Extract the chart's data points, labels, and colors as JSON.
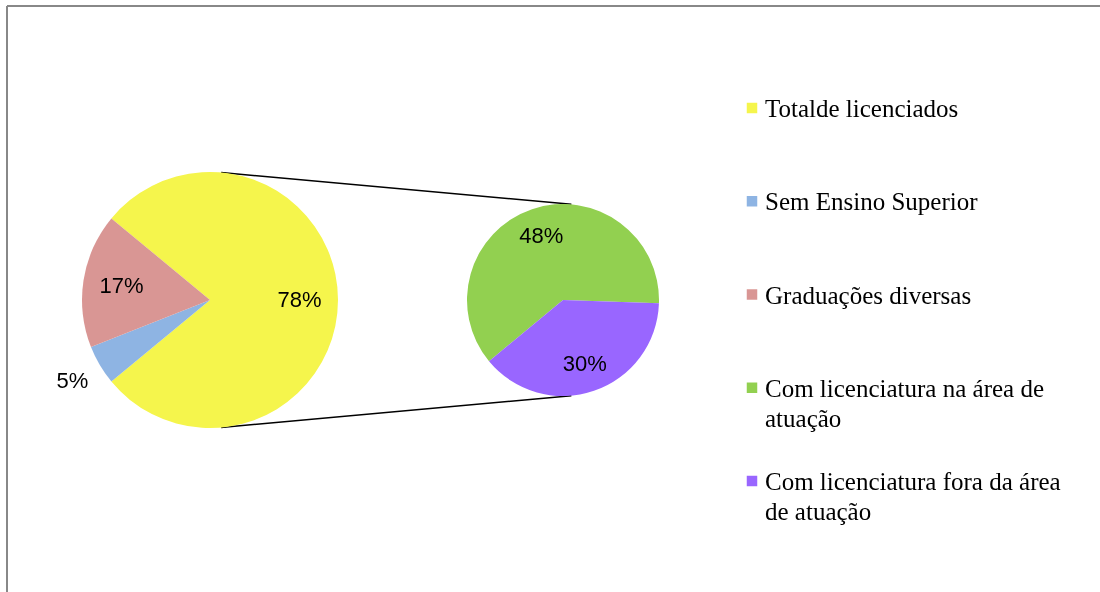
{
  "chart_data": [
    {
      "type": "pie",
      "categories": [
        "Totalde licenciados",
        "Sem Ensino Superior",
        "Graduações diversas"
      ],
      "values": [
        78,
        5,
        17
      ],
      "colors": [
        "#f5f54c",
        "#8eb4e3",
        "#d99694"
      ],
      "value_labels": [
        "78%",
        "5%",
        "17%"
      ],
      "legend": "right"
    },
    {
      "type": "pie",
      "categories": [
        "Com licenciatura na área de atuação",
        "Com licenciatura fora da área de atuação"
      ],
      "values": [
        48,
        30
      ],
      "colors": [
        "#92d050",
        "#9966ff"
      ],
      "value_labels": [
        "48%",
        "30%"
      ],
      "legend": "right"
    }
  ]
}
